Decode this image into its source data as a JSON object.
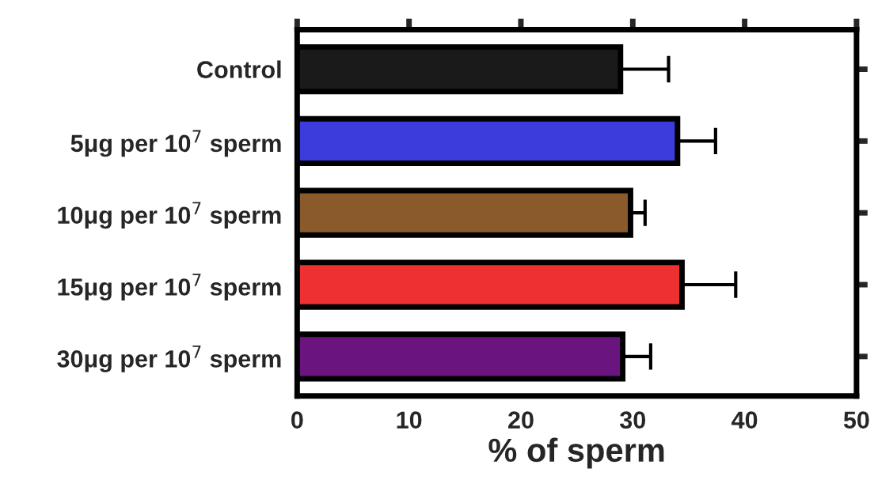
{
  "chart_data": {
    "type": "bar",
    "orientation": "horizontal",
    "xlabel": "% of sperm",
    "categories": [
      "Control",
      "5μg per 10$^{7}$ sperm",
      "10μg per 10$^{7}$ sperm",
      "15μg per 10$^{7}$ sperm",
      "30μg per 10$^{7}$ sperm"
    ],
    "values": [
      28.9,
      34.0,
      29.8,
      34.4,
      29.1
    ],
    "errors": [
      [
        28.9,
        33.2
      ],
      [
        34.0,
        37.4
      ],
      [
        29.8,
        31.1
      ],
      [
        34.4,
        39.2
      ],
      [
        29.1,
        31.6
      ]
    ],
    "colors": [
      "#1a1a1a",
      "#3c3cdc",
      "#8b5a2b",
      "#ee3030",
      "#6a1480"
    ],
    "xlim": [
      0,
      50
    ],
    "xticks": [
      0,
      10,
      20,
      30,
      40,
      50
    ],
    "grid": false,
    "legend": false
  }
}
